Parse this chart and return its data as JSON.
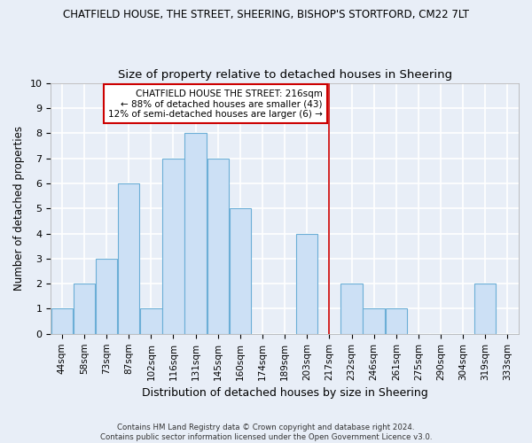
{
  "title1": "CHATFIELD HOUSE, THE STREET, SHEERING, BISHOP'S STORTFORD, CM22 7LT",
  "title2": "Size of property relative to detached houses in Sheering",
  "xlabel": "Distribution of detached houses by size in Sheering",
  "ylabel": "Number of detached properties",
  "bins": [
    "44sqm",
    "58sqm",
    "73sqm",
    "87sqm",
    "102sqm",
    "116sqm",
    "131sqm",
    "145sqm",
    "160sqm",
    "174sqm",
    "189sqm",
    "203sqm",
    "217sqm",
    "232sqm",
    "246sqm",
    "261sqm",
    "275sqm",
    "290sqm",
    "304sqm",
    "319sqm",
    "333sqm"
  ],
  "counts": [
    1,
    2,
    3,
    6,
    1,
    7,
    8,
    7,
    5,
    0,
    0,
    4,
    0,
    2,
    1,
    1,
    0,
    0,
    0,
    2,
    0
  ],
  "bar_color": "#cce0f5",
  "bar_edge_color": "#6baed6",
  "vline_x": 12.0,
  "vline_color": "#cc0000",
  "annotation_title": "CHATFIELD HOUSE THE STREET: 216sqm",
  "annotation_line1": "← 88% of detached houses are smaller (43)",
  "annotation_line2": "12% of semi-detached houses are larger (6) →",
  "annotation_box_color": "#ffffff",
  "annotation_box_edge": "#cc0000",
  "ylim": [
    0,
    10
  ],
  "background_color": "#e8eef7",
  "grid_color": "#ffffff",
  "footer1": "Contains HM Land Registry data © Crown copyright and database right 2024.",
  "footer2": "Contains public sector information licensed under the Open Government Licence v3.0."
}
